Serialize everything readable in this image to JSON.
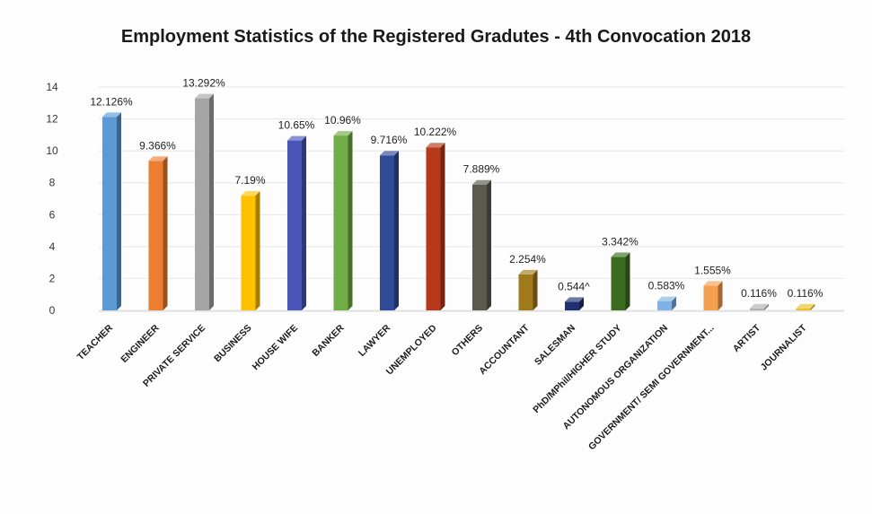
{
  "chart_data": {
    "type": "bar",
    "title": "Employment Statistics of the Registered Gradutes - 4th Convocation 2018",
    "xlabel": "",
    "ylabel": "",
    "ylim": [
      0,
      14
    ],
    "yticks": [
      0,
      2,
      4,
      6,
      8,
      10,
      12,
      14
    ],
    "grid": true,
    "legend": "none",
    "categories": [
      "TEACHER",
      "ENGINEER",
      "PRIVATE SERVICE",
      "BUSINESS",
      "HOUSE WIFE",
      "BANKER",
      "LAWYER",
      "UNEMPLOYED",
      "OTHERS",
      "ACCOUNTANT",
      "SALESMAN",
      "PhD/MPhil/HIGHER STUDY",
      "AUTONOMOUS ORGANIZATION",
      "GOVERNMENT/ SEMI GOVERNMENT...",
      "ARTIST",
      "JOURNALIST"
    ],
    "values": [
      12.126,
      9.366,
      13.292,
      7.19,
      10.65,
      10.96,
      9.716,
      10.222,
      7.889,
      2.254,
      0.544,
      3.342,
      0.583,
      1.555,
      0.116,
      0.116
    ],
    "data_labels": [
      "12.126%",
      "9.366%",
      "13.292%",
      "7.19%",
      "10.65%",
      "10.96%",
      "9.716%",
      "10.222%",
      "7.889%",
      "2.254%",
      "0.544^",
      "3.342%",
      "0.583%",
      "1.555%",
      "0.116%",
      "0.116%"
    ],
    "colors": [
      "#5b9bd5",
      "#ed7d31",
      "#a5a5a5",
      "#ffc000",
      "#4a55b8",
      "#70ad47",
      "#2f4a96",
      "#b5391a",
      "#5a5a50",
      "#a07a1a",
      "#1f2f70",
      "#3a6b1e",
      "#7fb2e5",
      "#f5a050",
      "#b0b0b0",
      "#e8c020"
    ]
  }
}
